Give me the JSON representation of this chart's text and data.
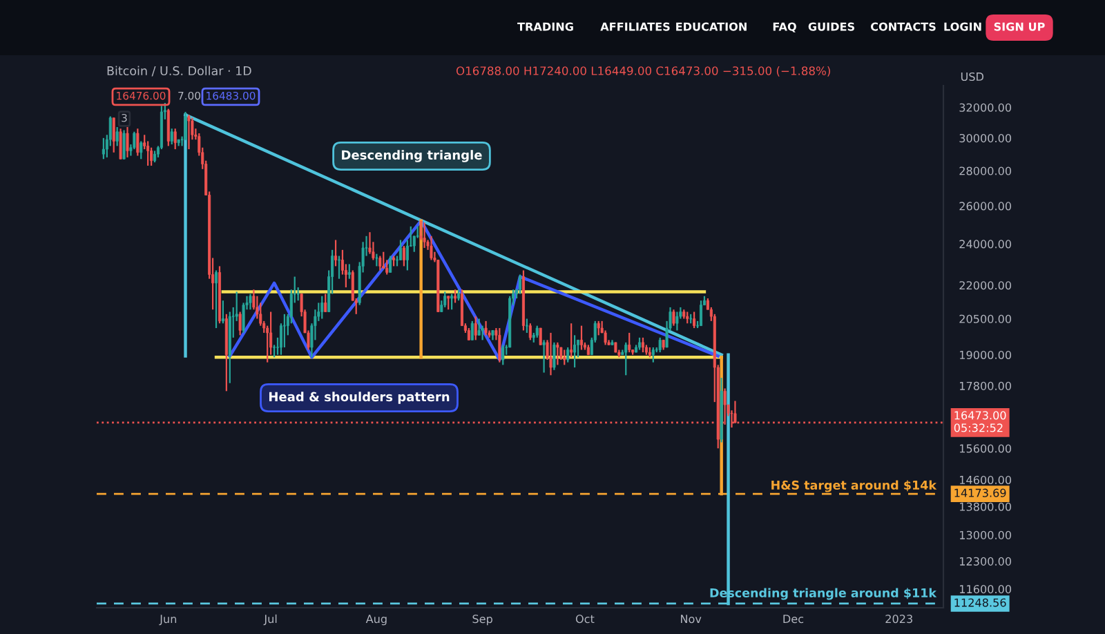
{
  "chart_data": {
    "type": "candlestick",
    "title": "Bitcoin / U.S. Dollar · 1D",
    "subtitle": "O16788.00 H17240.00 L16449.00 C16473.00 −315.00 (−1.88%)",
    "ylabel": "USD",
    "x": [
      "2022-05-13",
      "2022-05-14",
      "2022-05-15",
      "2022-05-16",
      "2022-05-17",
      "2022-05-18",
      "2022-05-19",
      "2022-05-20",
      "2022-05-21",
      "2022-05-22",
      "2022-05-23",
      "2022-05-24",
      "2022-05-25",
      "2022-05-26",
      "2022-05-27",
      "2022-05-28",
      "2022-05-29",
      "2022-05-30",
      "2022-05-31",
      "2022-06-01",
      "2022-06-02",
      "2022-06-03",
      "2022-06-04",
      "2022-06-05",
      "2022-06-06",
      "2022-06-07",
      "2022-06-08",
      "2022-06-09",
      "2022-06-10",
      "2022-06-11",
      "2022-06-12",
      "2022-06-13",
      "2022-06-14",
      "2022-06-15",
      "2022-06-16",
      "2022-06-17",
      "2022-06-18",
      "2022-06-19",
      "2022-06-20",
      "2022-06-21",
      "2022-06-22",
      "2022-06-23",
      "2022-06-24",
      "2022-06-25",
      "2022-06-26",
      "2022-06-27",
      "2022-06-28",
      "2022-06-29",
      "2022-06-30",
      "2022-07-01",
      "2022-07-02",
      "2022-07-03",
      "2022-07-04",
      "2022-07-05",
      "2022-07-06",
      "2022-07-07",
      "2022-07-08",
      "2022-07-09",
      "2022-07-10",
      "2022-07-11",
      "2022-07-12",
      "2022-07-13",
      "2022-07-14",
      "2022-07-15",
      "2022-07-16",
      "2022-07-17",
      "2022-07-18",
      "2022-07-19",
      "2022-07-20",
      "2022-07-21",
      "2022-07-22",
      "2022-07-23",
      "2022-07-24",
      "2022-07-25",
      "2022-07-26",
      "2022-07-27",
      "2022-07-28",
      "2022-07-29",
      "2022-07-30",
      "2022-07-31",
      "2022-08-01",
      "2022-08-02",
      "2022-08-03",
      "2022-08-04",
      "2022-08-05",
      "2022-08-06",
      "2022-08-07",
      "2022-08-08",
      "2022-08-09",
      "2022-08-10",
      "2022-08-11",
      "2022-08-12",
      "2022-08-13",
      "2022-08-14",
      "2022-08-15",
      "2022-08-16",
      "2022-08-17",
      "2022-08-18",
      "2022-08-19",
      "2022-08-20",
      "2022-08-21",
      "2022-08-22",
      "2022-08-23",
      "2022-08-24",
      "2022-08-25",
      "2022-08-26",
      "2022-08-27",
      "2022-08-28",
      "2022-08-29",
      "2022-08-30",
      "2022-08-31",
      "2022-09-01",
      "2022-09-02",
      "2022-09-03",
      "2022-09-04",
      "2022-09-05",
      "2022-09-06",
      "2022-09-07",
      "2022-09-08",
      "2022-09-09",
      "2022-09-10",
      "2022-09-11",
      "2022-09-12",
      "2022-09-13",
      "2022-09-14",
      "2022-09-15",
      "2022-09-16",
      "2022-09-17",
      "2022-09-18",
      "2022-09-19",
      "2022-09-20",
      "2022-09-21",
      "2022-09-22",
      "2022-09-23",
      "2022-09-24",
      "2022-09-25",
      "2022-09-26",
      "2022-09-27",
      "2022-09-28",
      "2022-09-29",
      "2022-09-30",
      "2022-10-01",
      "2022-10-02",
      "2022-10-03",
      "2022-10-04",
      "2022-10-05",
      "2022-10-06",
      "2022-10-07",
      "2022-10-08",
      "2022-10-09",
      "2022-10-10",
      "2022-10-11",
      "2022-10-12",
      "2022-10-13",
      "2022-10-14",
      "2022-10-15",
      "2022-10-16",
      "2022-10-17",
      "2022-10-18",
      "2022-10-19",
      "2022-10-20",
      "2022-10-21",
      "2022-10-22",
      "2022-10-23",
      "2022-10-24",
      "2022-10-25",
      "2022-10-26",
      "2022-10-27",
      "2022-10-28",
      "2022-10-29",
      "2022-10-30",
      "2022-10-31",
      "2022-11-01",
      "2022-11-02",
      "2022-11-03",
      "2022-11-04",
      "2022-11-05",
      "2022-11-06",
      "2022-11-07",
      "2022-11-08",
      "2022-11-09",
      "2022-11-10",
      "2022-11-11",
      "2022-11-12",
      "2022-11-13",
      "2022-11-14"
    ],
    "ohlc": [
      [
        29000,
        30000,
        28700,
        29300
      ],
      [
        29300,
        30200,
        28800,
        29900
      ],
      [
        29900,
        31400,
        29500,
        31300
      ],
      [
        31300,
        31300,
        29100,
        29800
      ],
      [
        29800,
        30700,
        29500,
        30400
      ],
      [
        30400,
        30600,
        28700,
        28700
      ],
      [
        28700,
        30500,
        28700,
        30300
      ],
      [
        30300,
        30700,
        28800,
        29200
      ],
      [
        29200,
        29600,
        28900,
        29400
      ],
      [
        29400,
        30400,
        29300,
        30300
      ],
      [
        30300,
        30600,
        28900,
        29100
      ],
      [
        29100,
        29800,
        28700,
        29700
      ],
      [
        29700,
        30200,
        29300,
        29500
      ],
      [
        29500,
        29800,
        28300,
        29200
      ],
      [
        29200,
        29400,
        28300,
        28600
      ],
      [
        28600,
        29200,
        28500,
        29000
      ],
      [
        29000,
        29500,
        28800,
        29400
      ],
      [
        29400,
        32100,
        29300,
        31700
      ],
      [
        31700,
        32300,
        31200,
        31800
      ],
      [
        31800,
        31900,
        29500,
        29800
      ],
      [
        29800,
        30600,
        29600,
        30400
      ],
      [
        30400,
        30600,
        29300,
        29700
      ],
      [
        29700,
        29900,
        29500,
        29900
      ],
      [
        29900,
        30100,
        29500,
        29900
      ],
      [
        29900,
        31700,
        29900,
        31400
      ],
      [
        31400,
        31500,
        29300,
        31100
      ],
      [
        31100,
        31300,
        29900,
        30200
      ],
      [
        30200,
        30600,
        29900,
        30100
      ],
      [
        30100,
        30300,
        28900,
        29100
      ],
      [
        29100,
        29400,
        28100,
        28400
      ],
      [
        28400,
        28600,
        26600,
        26600
      ],
      [
        26600,
        26800,
        22300,
        22500
      ],
      [
        22500,
        23300,
        20900,
        22100
      ],
      [
        22100,
        22700,
        20100,
        22600
      ],
      [
        22600,
        22900,
        20300,
        20400
      ],
      [
        20400,
        21300,
        20300,
        20500
      ],
      [
        20500,
        20700,
        17600,
        19000
      ],
      [
        19000,
        20800,
        17900,
        20600
      ],
      [
        20600,
        21000,
        19700,
        20600
      ],
      [
        20600,
        21700,
        20400,
        20700
      ],
      [
        20700,
        20800,
        19800,
        20000
      ],
      [
        20000,
        21200,
        19900,
        21100
      ],
      [
        21100,
        21500,
        20900,
        21200
      ],
      [
        21200,
        21600,
        20900,
        21500
      ],
      [
        21500,
        21800,
        20900,
        21000
      ],
      [
        21000,
        21500,
        20500,
        20700
      ],
      [
        20700,
        21200,
        20200,
        20300
      ],
      [
        20300,
        20400,
        19900,
        20100
      ],
      [
        20100,
        20200,
        18700,
        19900
      ],
      [
        19900,
        20800,
        19000,
        19300
      ],
      [
        19300,
        19400,
        18900,
        19300
      ],
      [
        19300,
        19700,
        19000,
        19300
      ],
      [
        19300,
        20300,
        19000,
        20200
      ],
      [
        20200,
        20700,
        19300,
        20200
      ],
      [
        20200,
        20700,
        19800,
        20600
      ],
      [
        20600,
        21800,
        20300,
        21600
      ],
      [
        21600,
        22400,
        21200,
        21600
      ],
      [
        21600,
        21900,
        21300,
        21600
      ],
      [
        21600,
        21600,
        20600,
        20800
      ],
      [
        20800,
        20900,
        19900,
        19900
      ],
      [
        19900,
        20000,
        19200,
        19300
      ],
      [
        19300,
        20300,
        18900,
        20200
      ],
      [
        20200,
        20900,
        19600,
        20600
      ],
      [
        20600,
        21200,
        20400,
        20800
      ],
      [
        20800,
        21500,
        20500,
        21200
      ],
      [
        21200,
        21600,
        20800,
        20800
      ],
      [
        20800,
        22700,
        20800,
        22400
      ],
      [
        22400,
        23700,
        21600,
        23400
      ],
      [
        23400,
        24200,
        22900,
        23200
      ],
      [
        23200,
        23400,
        22300,
        23200
      ],
      [
        23200,
        23700,
        22500,
        22700
      ],
      [
        22700,
        23000,
        21900,
        22500
      ],
      [
        22500,
        23000,
        22300,
        22600
      ],
      [
        22600,
        22700,
        21300,
        21300
      ],
      [
        21300,
        21400,
        20700,
        21200
      ],
      [
        21200,
        23100,
        21100,
        22900
      ],
      [
        22900,
        24100,
        22600,
        23800
      ],
      [
        23800,
        24400,
        23400,
        23800
      ],
      [
        23800,
        24600,
        23500,
        23600
      ],
      [
        23600,
        24100,
        23200,
        23300
      ],
      [
        23300,
        23500,
        22900,
        23300
      ],
      [
        23300,
        23400,
        22700,
        22900
      ],
      [
        22900,
        23600,
        22800,
        22800
      ],
      [
        22800,
        23200,
        22500,
        22600
      ],
      [
        22600,
        23400,
        22600,
        23300
      ],
      [
        23300,
        23400,
        22900,
        23200
      ],
      [
        23200,
        23400,
        22900,
        23200
      ],
      [
        23200,
        24200,
        23200,
        23800
      ],
      [
        23800,
        23900,
        22900,
        23200
      ],
      [
        23200,
        24200,
        22700,
        23900
      ],
      [
        23900,
        24900,
        23900,
        23900
      ],
      [
        23900,
        24400,
        23600,
        24400
      ],
      [
        24400,
        24900,
        24300,
        24400
      ],
      [
        24400,
        25200,
        24200,
        24300
      ],
      [
        24300,
        25100,
        23800,
        24100
      ],
      [
        24100,
        24200,
        23700,
        23900
      ],
      [
        23900,
        24400,
        23200,
        23300
      ],
      [
        23300,
        23600,
        23100,
        23200
      ],
      [
        23200,
        23200,
        20800,
        20800
      ],
      [
        20800,
        21300,
        20800,
        21100
      ],
      [
        21100,
        21700,
        21000,
        21500
      ],
      [
        21500,
        21500,
        20900,
        21400
      ],
      [
        21400,
        21600,
        20900,
        21500
      ],
      [
        21500,
        21800,
        21200,
        21400
      ],
      [
        21400,
        21800,
        21300,
        21600
      ],
      [
        21600,
        21800,
        20200,
        20200
      ],
      [
        20200,
        20300,
        19900,
        20000
      ],
      [
        20000,
        20100,
        19600,
        19600
      ],
      [
        19600,
        20400,
        19600,
        20300
      ],
      [
        20300,
        20600,
        19600,
        19800
      ],
      [
        19800,
        20500,
        19800,
        20000
      ],
      [
        20000,
        20200,
        19600,
        20100
      ],
      [
        20100,
        20400,
        19800,
        19900
      ],
      [
        19900,
        20000,
        19700,
        19800
      ],
      [
        19800,
        20000,
        19600,
        20000
      ],
      [
        20000,
        20100,
        19600,
        19800
      ],
      [
        19800,
        20100,
        18700,
        18800
      ],
      [
        18800,
        19400,
        18600,
        19300
      ],
      [
        19300,
        19400,
        19000,
        19300
      ],
      [
        19300,
        21500,
        19300,
        21400
      ],
      [
        21400,
        21800,
        21100,
        21600
      ],
      [
        21600,
        21800,
        21400,
        21800
      ],
      [
        21800,
        22500,
        21600,
        22400
      ],
      [
        22400,
        22700,
        20000,
        20200
      ],
      [
        20200,
        20500,
        19900,
        20200
      ],
      [
        20200,
        20300,
        19600,
        19700
      ],
      [
        19700,
        19900,
        19500,
        19800
      ],
      [
        19800,
        20200,
        19700,
        20100
      ],
      [
        20100,
        20100,
        19400,
        19400
      ],
      [
        19400,
        19600,
        18300,
        19500
      ],
      [
        19500,
        19600,
        18800,
        18900
      ],
      [
        18900,
        19900,
        18200,
        18500
      ],
      [
        18500,
        19500,
        18400,
        19400
      ],
      [
        19400,
        19500,
        18600,
        19300
      ],
      [
        19300,
        19300,
        18800,
        18900
      ],
      [
        18900,
        19200,
        18600,
        18800
      ],
      [
        18800,
        19300,
        18700,
        19200
      ],
      [
        19200,
        20300,
        18900,
        19100
      ],
      [
        19100,
        19800,
        18500,
        19400
      ],
      [
        19400,
        19600,
        18900,
        19600
      ],
      [
        19600,
        20200,
        19200,
        19400
      ],
      [
        19400,
        19500,
        19200,
        19300
      ],
      [
        19300,
        19400,
        19000,
        19000
      ],
      [
        19000,
        19700,
        19000,
        19600
      ],
      [
        19600,
        20400,
        19500,
        20300
      ],
      [
        20300,
        20400,
        19800,
        20100
      ],
      [
        20100,
        20400,
        19900,
        19900
      ],
      [
        19900,
        20000,
        19400,
        19500
      ],
      [
        19500,
        19600,
        19400,
        19400
      ],
      [
        19400,
        19600,
        19400,
        19500
      ],
      [
        19500,
        19500,
        19100,
        19100
      ],
      [
        19100,
        19200,
        18900,
        19000
      ],
      [
        19000,
        19200,
        19000,
        19100
      ],
      [
        19100,
        19500,
        18200,
        19400
      ],
      [
        19400,
        19900,
        19100,
        19200
      ],
      [
        19200,
        19200,
        19000,
        19100
      ],
      [
        19100,
        19400,
        19100,
        19300
      ],
      [
        19300,
        19700,
        19200,
        19500
      ],
      [
        19500,
        19700,
        19100,
        19300
      ],
      [
        19300,
        19400,
        19000,
        19100
      ],
      [
        19100,
        19300,
        18900,
        19000
      ],
      [
        19000,
        19300,
        18700,
        19200
      ],
      [
        19200,
        19300,
        19100,
        19200
      ],
      [
        19200,
        19700,
        19100,
        19600
      ],
      [
        19600,
        19600,
        19200,
        19300
      ],
      [
        19300,
        20400,
        19300,
        20100
      ],
      [
        20100,
        21000,
        20000,
        20800
      ],
      [
        20800,
        20900,
        20200,
        20300
      ],
      [
        20300,
        20800,
        20000,
        20600
      ],
      [
        20600,
        21000,
        20500,
        20800
      ],
      [
        20800,
        20900,
        20500,
        20600
      ],
      [
        20600,
        20800,
        20300,
        20500
      ],
      [
        20500,
        20700,
        20300,
        20500
      ],
      [
        20500,
        20800,
        20100,
        20200
      ],
      [
        20200,
        20400,
        20100,
        20200
      ],
      [
        20200,
        21300,
        20200,
        21100
      ],
      [
        21100,
        21500,
        21100,
        21300
      ],
      [
        21300,
        21400,
        20900,
        20900
      ],
      [
        20900,
        21000,
        20400,
        20600
      ],
      [
        20600,
        20700,
        17200,
        18500
      ],
      [
        18500,
        18600,
        15600,
        15900
      ],
      [
        15900,
        18100,
        15800,
        17600
      ],
      [
        17600,
        17700,
        16400,
        17100
      ],
      [
        17100,
        17100,
        16700,
        16800
      ],
      [
        16800,
        16900,
        16300,
        16788
      ],
      [
        16788,
        17240,
        16449,
        16473
      ]
    ],
    "series": [
      {
        "type": "line",
        "color": "#4fc3dc",
        "x": [
          "2022-06-06",
          "2022-11-10"
        ],
        "values": [
          31500,
          19000
        ]
      },
      {
        "type": "line",
        "color": "#f5e05a",
        "x": [
          "2022-06-17",
          "2022-11-05"
        ],
        "values": [
          21700,
          21700
        ]
      },
      {
        "type": "line",
        "color": "#f5e05a",
        "x": [
          "2022-06-15",
          "2022-11-10"
        ],
        "values": [
          18900,
          18900
        ]
      },
      {
        "type": "line",
        "color": "#3d5afe",
        "x": [
          "2022-06-19",
          "2022-07-02",
          "2022-07-13",
          "2022-08-14",
          "2022-09-06",
          "2022-09-12",
          "2022-11-09"
        ],
        "values": [
          18950,
          22100,
          18900,
          25200,
          18800,
          22400,
          18950
        ]
      },
      {
        "type": "line",
        "color": "#f7a531",
        "x": [
          "2022-08-14",
          "2022-08-14"
        ],
        "values": [
          25200,
          18900
        ]
      },
      {
        "type": "line",
        "color": "#f7a531",
        "x": [
          "2022-11-10",
          "2022-11-10"
        ],
        "values": [
          18900,
          14173.69
        ]
      },
      {
        "type": "line",
        "color": "#4fc3dc",
        "x": [
          "2022-06-06",
          "2022-06-06"
        ],
        "values": [
          31500,
          18950
        ]
      },
      {
        "type": "line",
        "color": "#4fc3dc",
        "x": [
          "2022-11-12",
          "2022-11-12"
        ],
        "values": [
          19000,
          11248.56
        ]
      }
    ],
    "xlim": [
      "2022-05-11",
      "2023-01-14"
    ],
    "xticks": [
      {
        "value": "2022-06-01",
        "label": "Jun"
      },
      {
        "value": "2022-07-01",
        "label": "Jul"
      },
      {
        "value": "2022-08-01",
        "label": "Aug"
      },
      {
        "value": "2022-09-01",
        "label": "Sep"
      },
      {
        "value": "2022-10-01",
        "label": "Oct"
      },
      {
        "value": "2022-11-01",
        "label": "Nov"
      },
      {
        "value": "2022-12-01",
        "label": "Dec"
      },
      {
        "value": "2023-01-01",
        "label": "2023"
      }
    ],
    "log": true,
    "ylim": [
      11150,
      33500
    ],
    "yticks": [
      {
        "value": 32000,
        "label": "32000.00"
      },
      {
        "value": 30000,
        "label": "30000.00"
      },
      {
        "value": 28000,
        "label": "28000.00"
      },
      {
        "value": 26000,
        "label": "26000.00"
      },
      {
        "value": 24000,
        "label": "24000.00"
      },
      {
        "value": 22000,
        "label": "22000.00"
      },
      {
        "value": 20500,
        "label": "20500.00"
      },
      {
        "value": 19000,
        "label": "19000.00"
      },
      {
        "value": 17800,
        "label": "17800.00"
      },
      {
        "value": 15600,
        "label": "15600.00"
      },
      {
        "value": 14600,
        "label": "14600.00"
      },
      {
        "value": 13800,
        "label": "13800.00"
      },
      {
        "value": 13000,
        "label": "13000.00"
      },
      {
        "value": 12300,
        "label": "12300.00"
      },
      {
        "value": 11600,
        "label": "11600.00"
      }
    ],
    "ref_lines": [
      {
        "axis": "y",
        "value": 16473,
        "label": "16473.00\n05:32:52",
        "color": "#ef5350",
        "line_style": "dotted"
      },
      {
        "axis": "y",
        "value": 14173.69,
        "label": "14173.69",
        "color": "#f7a531",
        "line_style": "dashed"
      },
      {
        "axis": "y",
        "value": 11248.56,
        "label": "11248.56",
        "color": "#5ac8e0",
        "line_style": "dashed"
      }
    ],
    "annotations": [
      "Descending triangle",
      "Head & shoulders pattern",
      "H&S target around $14k",
      "Descending triangle around $11k",
      "TRADING",
      "AFFILIATES",
      "EDUCATION",
      "FAQ",
      "GUIDES",
      "CONTACTS",
      "LOGIN",
      "SIGN UP",
      "16476.00",
      "7.00",
      "16483.00",
      "3"
    ]
  }
}
